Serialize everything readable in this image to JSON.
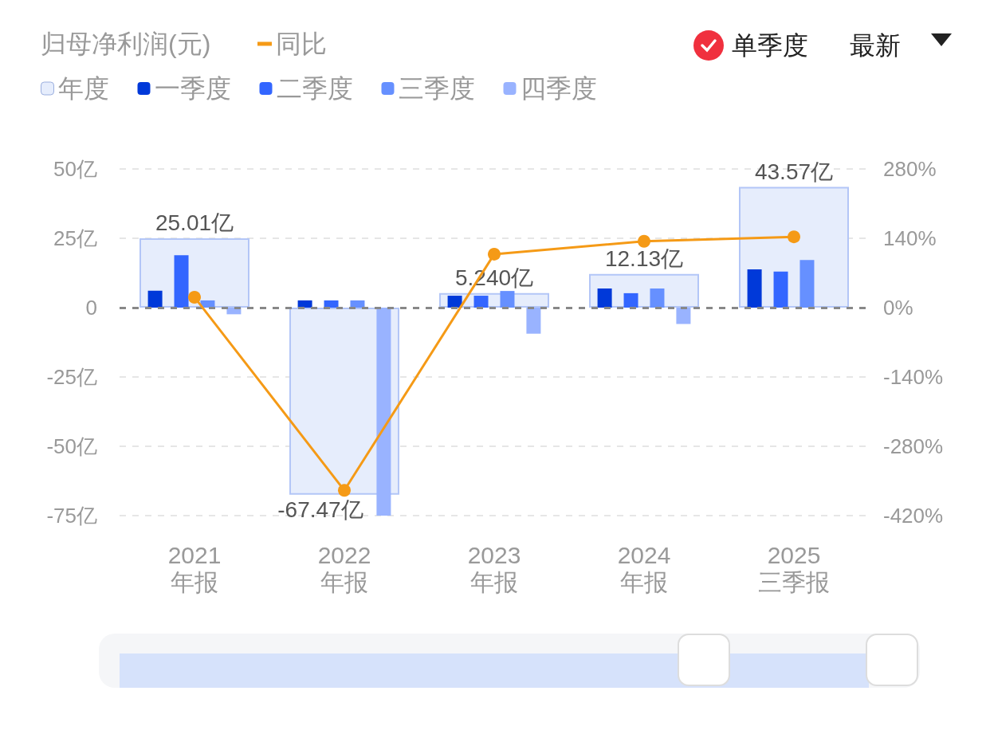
{
  "chart_data": {
    "type": "bar",
    "title": "归母净利润(元)",
    "categories": [
      "2021\n年报",
      "2022\n年报",
      "2023\n年报",
      "2024\n年报",
      "2025\n三季报"
    ],
    "series": [
      {
        "name": "年度",
        "type": "bar",
        "color": "#e6edfc",
        "values": [
          25.01,
          -67.47,
          5.24,
          12.13,
          43.57
        ],
        "value_labels": [
          "25.01亿",
          "-67.47亿",
          "5.240亿",
          "12.13亿",
          "43.57亿"
        ]
      },
      {
        "name": "一季度",
        "type": "bar",
        "color": "#0039d9",
        "values": [
          6.1,
          2.6,
          4.3,
          6.9,
          13.8
        ]
      },
      {
        "name": "二季度",
        "type": "bar",
        "color": "#3366ff",
        "values": [
          18.9,
          2.6,
          4.3,
          5.2,
          13.0
        ]
      },
      {
        "name": "三季度",
        "type": "bar",
        "color": "#6690ff",
        "values": [
          2.6,
          2.6,
          6.0,
          6.9,
          17.2
        ]
      },
      {
        "name": "四季度",
        "type": "bar",
        "color": "#99b3ff",
        "values": [
          -2.4,
          -75,
          -9.4,
          -5.9,
          null
        ]
      },
      {
        "name": "同比",
        "type": "line",
        "axis": "y2",
        "color": "#f59a16",
        "values": [
          21,
          -369,
          108,
          134,
          143
        ]
      }
    ],
    "ylim": [
      -75,
      50
    ],
    "yticks": [
      {
        "value": -75,
        "label": "-75亿"
      },
      {
        "value": -50,
        "label": "-50亿"
      },
      {
        "value": -25,
        "label": "-25亿"
      },
      0,
      {
        "value": 25,
        "label": "25亿"
      },
      {
        "value": 50,
        "label": "50亿"
      }
    ],
    "y2lim": [
      -420,
      280
    ],
    "y2ticks": [
      {
        "value": -420,
        "label": "-420%"
      },
      {
        "value": -280,
        "label": "-280%"
      },
      {
        "value": -140,
        "label": "-140%"
      },
      {
        "value": 0,
        "label": "0%"
      },
      {
        "value": 140,
        "label": "140%"
      },
      {
        "value": 280,
        "label": "280%"
      }
    ],
    "ref_lines": [
      {
        "axis": "y",
        "value": 0,
        "color": "#888888",
        "line_style": "dashed"
      }
    ],
    "grid": "y",
    "legend": "top left",
    "marker": "circle",
    "annotations": [
      "单季度",
      "最新"
    ]
  }
}
